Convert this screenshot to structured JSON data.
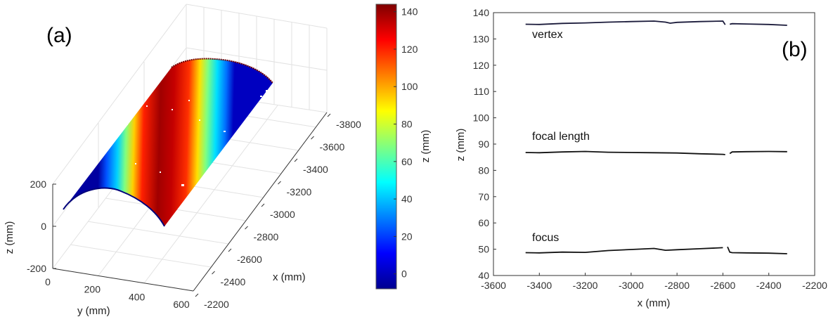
{
  "chart_data": [
    {
      "type": "surface3d",
      "panel_label": "(a)",
      "xlabel": "x (mm)",
      "ylabel": "y (mm)",
      "zlabel": "z (mm)",
      "x_ticks": [
        -3800,
        -3600,
        -3400,
        -3200,
        -3000,
        -2800,
        -2600,
        -2400,
        -2200
      ],
      "y_ticks": [
        0,
        200,
        400,
        600
      ],
      "z_ticks": [
        -200,
        0,
        200
      ],
      "colorbar": {
        "label": "z (mm)",
        "ticks": [
          0,
          20,
          40,
          60,
          80,
          100,
          120,
          140
        ],
        "range": [
          -8,
          144
        ],
        "colormap": "jet"
      },
      "colors": {
        "low": "#00008f",
        "mid": "#80ff80",
        "high": "#7f0000"
      }
    },
    {
      "type": "line",
      "panel_label": "(b)",
      "xlabel": "x (mm)",
      "ylabel": "z (mm)",
      "xlim": [
        -3600,
        -2200
      ],
      "ylim": [
        40,
        140
      ],
      "x_ticks": [
        -3600,
        -3400,
        -3200,
        -3000,
        -2800,
        -2600,
        -2400,
        -2200
      ],
      "y_ticks": [
        40,
        50,
        60,
        70,
        80,
        90,
        100,
        110,
        120,
        130,
        140
      ],
      "series": [
        {
          "name": "vertex",
          "color": "#1a1a3a",
          "x": [
            -3460,
            -3400,
            -3300,
            -3200,
            -3100,
            -3000,
            -2900,
            -2850,
            -2830,
            -2800,
            -2700,
            -2600,
            -2590,
            -2570,
            -2560,
            -2500,
            -2400,
            -2320
          ],
          "y": [
            135.6,
            135.5,
            135.9,
            136.1,
            136.4,
            136.6,
            136.8,
            136.4,
            136.0,
            136.3,
            136.6,
            136.8,
            135.4,
            135.6,
            135.8,
            135.7,
            135.5,
            135.2
          ]
        },
        {
          "name": "focal length",
          "color": "#111111",
          "x": [
            -3460,
            -3400,
            -3300,
            -3200,
            -3100,
            -3000,
            -2900,
            -2800,
            -2700,
            -2600,
            -2590,
            -2570,
            -2560,
            -2500,
            -2400,
            -2320
          ],
          "y": [
            86.8,
            86.7,
            87.0,
            87.2,
            86.9,
            86.8,
            86.7,
            86.6,
            86.3,
            86.1,
            86.0,
            86.4,
            87.0,
            87.1,
            87.2,
            87.1
          ]
        },
        {
          "name": "focus",
          "color": "#111111",
          "x": [
            -3460,
            -3400,
            -3300,
            -3200,
            -3100,
            -3000,
            -2900,
            -2850,
            -2800,
            -2700,
            -2600,
            -2580,
            -2570,
            -2560,
            -2500,
            -2400,
            -2320
          ],
          "y": [
            48.7,
            48.6,
            48.9,
            48.8,
            49.5,
            49.9,
            50.3,
            49.6,
            49.8,
            50.2,
            50.6,
            50.9,
            48.9,
            48.7,
            48.6,
            48.5,
            48.3
          ]
        }
      ]
    }
  ]
}
